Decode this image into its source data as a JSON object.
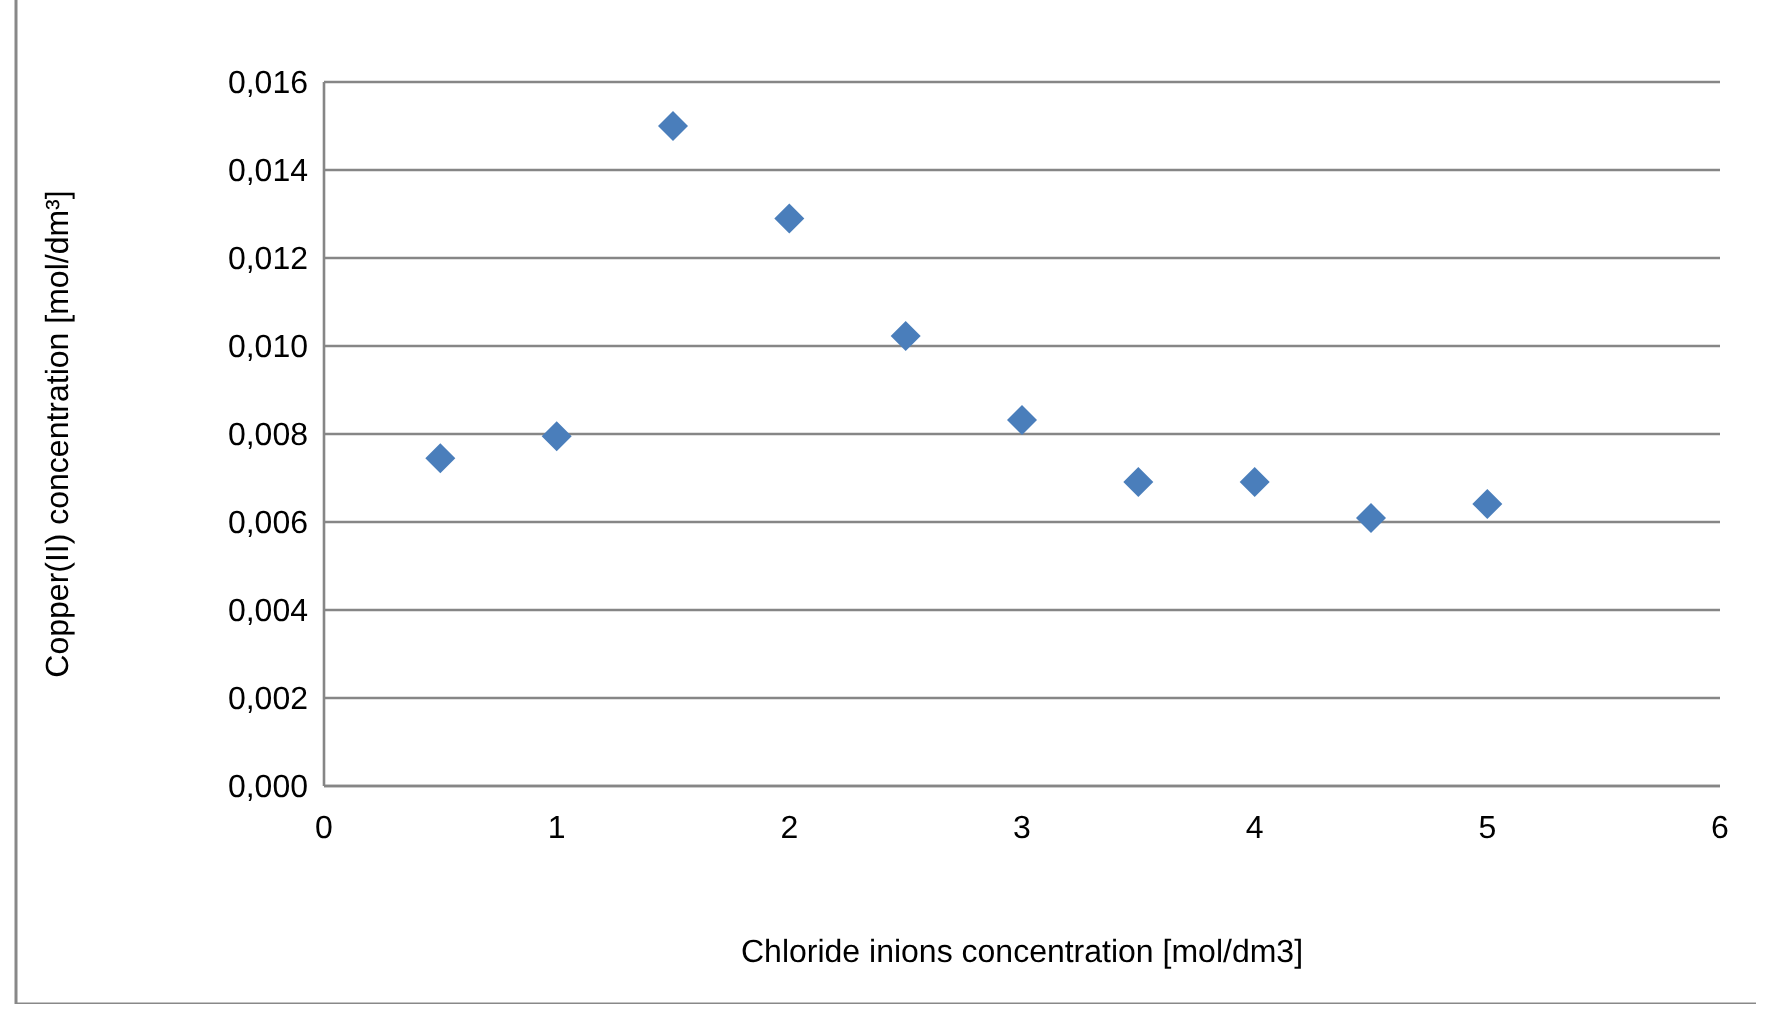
{
  "chart_data": {
    "type": "scatter",
    "xlabel": "Chloride inions concentration [mol/dm3]",
    "ylabel": "Copper(II) concentration [mol/dm³]",
    "x": [
      0.5,
      1,
      1.5,
      2,
      2.5,
      3,
      3.5,
      4,
      4.5,
      5
    ],
    "series": [
      {
        "color": "#4a7ebb",
        "values": [
          0.00745,
          0.00795,
          0.015,
          0.0129,
          0.01023,
          0.00832,
          0.00691,
          0.00691,
          0.00609,
          0.00641
        ]
      }
    ],
    "xlim": [
      0,
      6
    ],
    "xticks": [
      0,
      1,
      2,
      3,
      4,
      5,
      6
    ],
    "ylim": [
      0,
      0.016
    ],
    "yticks": [
      {
        "value": 0,
        "label": "0,000"
      },
      {
        "value": 0.002,
        "label": "0,002"
      },
      {
        "value": 0.004,
        "label": "0,004"
      },
      {
        "value": 0.006,
        "label": "0,006"
      },
      {
        "value": 0.008,
        "label": "0,008"
      },
      {
        "value": 0.01,
        "label": "0,010"
      },
      {
        "value": 0.012,
        "label": "0,012"
      },
      {
        "value": 0.014,
        "label": "0,014"
      },
      {
        "value": 0.016,
        "label": "0,016"
      }
    ],
    "grid": "y",
    "marker": "diamond"
  }
}
